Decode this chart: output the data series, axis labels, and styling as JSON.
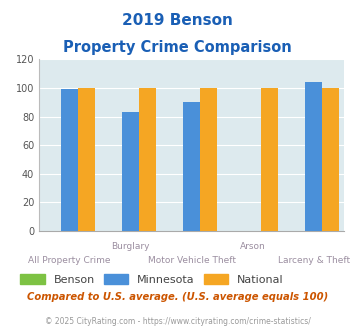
{
  "title_line1": "2019 Benson",
  "title_line2": "Property Crime Comparison",
  "categories": [
    "All Property Crime",
    "Burglary",
    "Motor Vehicle Theft",
    "Arson",
    "Larceny & Theft"
  ],
  "benson_values": [
    0,
    0,
    0,
    0,
    0
  ],
  "minnesota_values": [
    99,
    83,
    90,
    0,
    104
  ],
  "national_values": [
    100,
    100,
    100,
    100,
    100
  ],
  "benson_color": "#7dc243",
  "minnesota_color": "#4a90d9",
  "national_color": "#f5a623",
  "ylim": [
    0,
    120
  ],
  "yticks": [
    0,
    20,
    40,
    60,
    80,
    100,
    120
  ],
  "bg_color": "#ddeaee",
  "fig_bg": "#ffffff",
  "title_color": "#1a5fb5",
  "label_color": "#9b8ea0",
  "footnote1": "Compared to U.S. average. (U.S. average equals 100)",
  "footnote2": "© 2025 CityRating.com - https://www.cityrating.com/crime-statistics/",
  "footnote1_color": "#cc5500",
  "footnote2_color": "#999999",
  "footnote2_link_color": "#4a90d9",
  "legend_labels": [
    "Benson",
    "Minnesota",
    "National"
  ],
  "bar_width": 0.28
}
